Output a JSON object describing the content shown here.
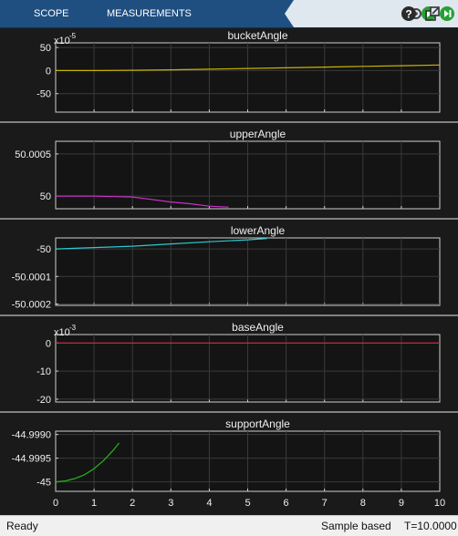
{
  "toolbar": {
    "tabs": [
      "SCOPE",
      "MEASUREMENTS"
    ],
    "buttons": [
      "step-back-icon",
      "run-icon",
      "step-forward-icon",
      "stop-icon",
      "help-icon",
      "undock-icon"
    ]
  },
  "status": {
    "left": "Ready",
    "mode": "Sample based",
    "time": "T=10.0000"
  },
  "chart_data": [
    {
      "type": "line",
      "title": "bucketAngle",
      "exponent": "x10",
      "exponent_power": "-5",
      "yticks": [
        50,
        0,
        -50
      ],
      "ytick_labels": [
        "50",
        "0",
        "-50"
      ],
      "ylim": [
        -90,
        60
      ],
      "xlim": [
        0,
        10
      ],
      "grid": true,
      "series": [
        {
          "color": "#c8b400",
          "x": [
            0,
            1,
            2,
            3,
            4,
            5,
            6,
            7,
            8,
            9,
            10
          ],
          "y": [
            0,
            0,
            0.5,
            1.5,
            3,
            4.5,
            6,
            7.5,
            9,
            10.5,
            12
          ]
        }
      ]
    },
    {
      "type": "line",
      "title": "upperAngle",
      "yticks": [
        50.0005,
        50
      ],
      "ytick_labels": [
        "50.0005",
        "50"
      ],
      "ylim": [
        49.99985,
        50.00065
      ],
      "xlim": [
        0,
        10
      ],
      "grid": true,
      "series": [
        {
          "color": "#c832c8",
          "x": [
            0,
            1,
            2,
            2.5,
            3,
            3.5,
            4,
            4.5
          ],
          "y": [
            50,
            50,
            49.99999,
            49.99996,
            49.99993,
            49.99991,
            49.99988,
            49.99987
          ]
        }
      ]
    },
    {
      "type": "line",
      "title": "lowerAngle",
      "yticks": [
        -50,
        -50.0001,
        -50.0002
      ],
      "ytick_labels": [
        "-50",
        "-50.0001",
        "-50.0002"
      ],
      "ylim": [
        -50.000205,
        -49.99996
      ],
      "xlim": [
        0,
        10
      ],
      "grid": true,
      "series": [
        {
          "color": "#2ec8d0",
          "x": [
            0,
            1,
            2,
            3,
            4,
            5,
            5.5
          ],
          "y": [
            -50,
            -49.999995,
            -49.99999,
            -49.999982,
            -49.999974,
            -49.999967,
            -49.999962
          ]
        }
      ]
    },
    {
      "type": "line",
      "title": "baseAngle",
      "exponent": "x10",
      "exponent_power": "-3",
      "yticks": [
        0,
        -10,
        -20
      ],
      "ytick_labels": [
        "0",
        "-10",
        "-20"
      ],
      "ylim": [
        -21,
        3
      ],
      "xlim": [
        0,
        10
      ],
      "grid": true,
      "series": [
        {
          "color": "#e0203c",
          "x": [
            0,
            10
          ],
          "y": [
            0,
            0
          ]
        }
      ]
    },
    {
      "type": "line",
      "title": "supportAngle",
      "yticks": [
        -44.999,
        -44.9995,
        -45
      ],
      "ytick_labels": [
        "-44.9990",
        "-44.9995",
        "-45"
      ],
      "ylim": [
        -45.0002,
        -44.99893
      ],
      "xlim": [
        0,
        10
      ],
      "xticks": [
        0,
        1,
        2,
        3,
        4,
        5,
        6,
        7,
        8,
        9,
        10
      ],
      "xtick_labels": [
        "0",
        "1",
        "2",
        "3",
        "4",
        "5",
        "6",
        "7",
        "8",
        "9",
        "10"
      ],
      "grid": true,
      "series": [
        {
          "color": "#22b422",
          "x": [
            0,
            0.25,
            0.5,
            0.75,
            1,
            1.25,
            1.5,
            1.65
          ],
          "y": [
            -45,
            -44.99998,
            -44.99993,
            -44.99985,
            -44.99972,
            -44.99955,
            -44.99933,
            -44.99918
          ]
        }
      ]
    }
  ]
}
